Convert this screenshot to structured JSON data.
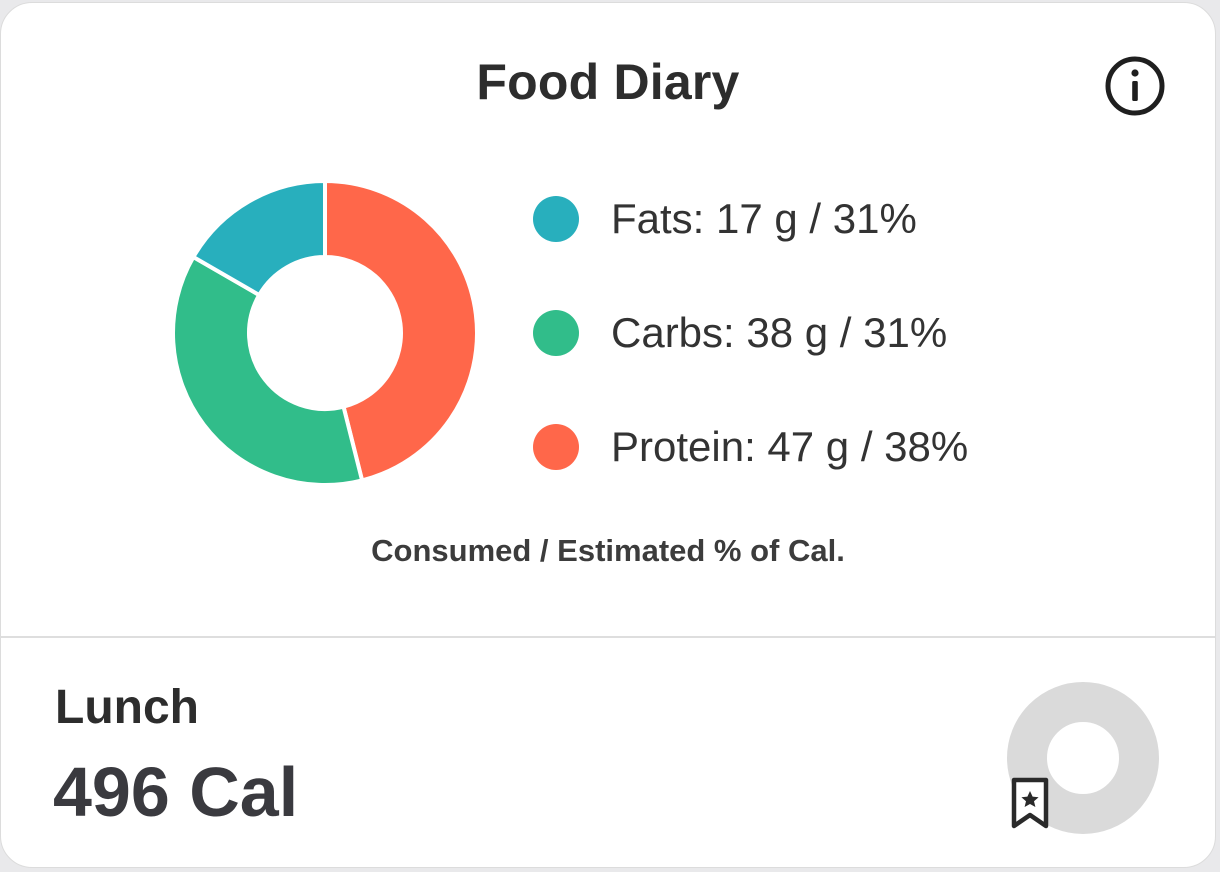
{
  "card": {
    "title": "Food Diary",
    "info_icon": "info-circle-icon",
    "caption": "Consumed / Estimated % of Cal."
  },
  "chart_data": {
    "type": "pie",
    "donut": true,
    "categories": [
      "Fats",
      "Carbs",
      "Protein"
    ],
    "values": [
      17,
      38,
      47
    ],
    "units": "g",
    "percents": [
      31,
      31,
      38
    ],
    "colors": [
      "#28AFBD",
      "#31BD8A",
      "#FF674A"
    ],
    "legend_position": "right",
    "legend": [
      {
        "name": "Fats",
        "label": "Fats: 17 g / 31%",
        "color": "#28AFBD"
      },
      {
        "name": "Carbs",
        "label": "Carbs: 38 g / 31%",
        "color": "#31BD8A"
      },
      {
        "name": "Protein",
        "label": "Protein: 47 g / 38%",
        "color": "#FF674A"
      }
    ]
  },
  "meal": {
    "name": "Lunch",
    "calories": "496 Cal",
    "bookmark_icon": "bookmark-star-icon",
    "ring_color": "#DADADA"
  }
}
